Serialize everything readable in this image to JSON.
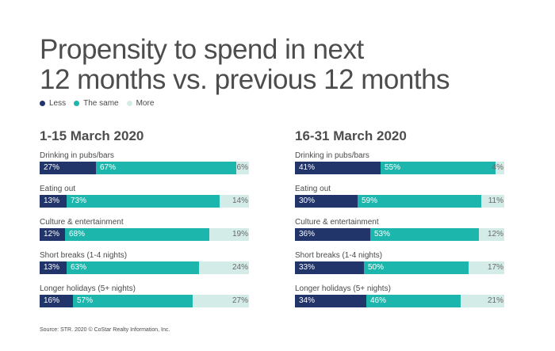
{
  "title": [
    "Propensity to spend in next",
    "12 months vs. previous 12 months"
  ],
  "source": "Source: STR. 2020 © CoStar Realty Information, Inc.",
  "colors": {
    "less": "#22356b",
    "same": "#1db6ac",
    "more": "#d4ece7",
    "less_text": "#ffffff",
    "same_text": "#ffffff",
    "more_text": "#6a6a6a"
  },
  "chart_data": [
    {
      "type": "bar",
      "stacked": true,
      "orientation": "horizontal",
      "title": "1-15 March 2020",
      "legend": [
        "Less",
        "The same",
        "More"
      ],
      "categories": [
        "Drinking in pubs/bars",
        "Eating out",
        "Culture & entertainment",
        "Short breaks (1-4 nights)",
        "Longer holidays (5+ nights)"
      ],
      "series": [
        {
          "name": "Less",
          "values": [
            27,
            13,
            12,
            13,
            16
          ],
          "labels": [
            "27%",
            "13%",
            "12%",
            "13%",
            "16%"
          ]
        },
        {
          "name": "The same",
          "values": [
            67,
            73,
            68,
            63,
            57
          ],
          "labels": [
            "67%",
            "73%",
            "68%",
            "63%",
            "57%"
          ]
        },
        {
          "name": "More",
          "values": [
            6,
            14,
            19,
            24,
            27
          ],
          "labels": [
            "6%",
            "14%",
            "19%",
            "24%",
            "27%"
          ]
        }
      ],
      "xlim": [
        0,
        100
      ]
    },
    {
      "type": "bar",
      "stacked": true,
      "orientation": "horizontal",
      "title": "16-31 March 2020",
      "legend": [
        "Less",
        "The same",
        "More"
      ],
      "categories": [
        "Drinking in pubs/bars",
        "Eating out",
        "Culture & entertainment",
        "Short breaks (1-4 nights)",
        "Longer holidays (5+ nights)"
      ],
      "series": [
        {
          "name": "Less",
          "values": [
            41,
            30,
            36,
            33,
            34
          ],
          "labels": [
            "41%",
            "30%",
            "36%",
            "33%",
            "34%"
          ]
        },
        {
          "name": "The same",
          "values": [
            55,
            59,
            53,
            50,
            46
          ],
          "labels": [
            "55%",
            "59%",
            "53%",
            "50%",
            "46%"
          ]
        },
        {
          "name": "More",
          "values": [
            4,
            11,
            12,
            17,
            21
          ],
          "labels": [
            "4%",
            "11%",
            "12%",
            "17%",
            "21%"
          ]
        }
      ],
      "xlim": [
        0,
        100
      ]
    }
  ]
}
